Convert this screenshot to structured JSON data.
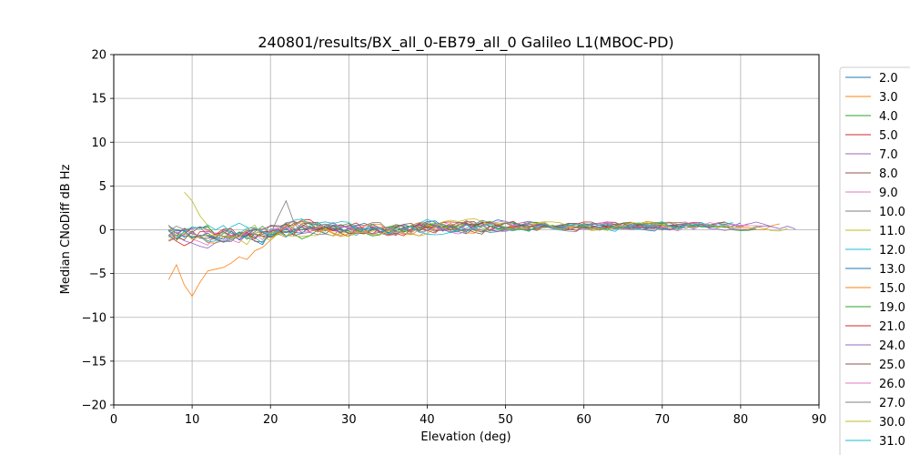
{
  "chart_data": {
    "type": "line",
    "title": "240801/results/BX_all_0-EB79_all_0 Galileo L1(MBOC-PD)",
    "xlabel": "Elevation (deg)",
    "ylabel": "Median CNoDiff dB Hz",
    "xlim": [
      0,
      90
    ],
    "ylim": [
      -20,
      20
    ],
    "xticks": [
      0,
      10,
      20,
      30,
      40,
      50,
      60,
      70,
      80,
      90
    ],
    "yticks": [
      -20,
      -15,
      -10,
      -5,
      0,
      5,
      10,
      15,
      20
    ],
    "grid": true,
    "legend_position": "right, outside plot, clipped at bottom",
    "legend_visible_count": 20,
    "x_start": 7,
    "x_end": 87,
    "series": [
      {
        "name": "2.0",
        "color": "#1f77b4",
        "x_start": 7,
        "x_end": 80
      },
      {
        "name": "3.0",
        "color": "#ff7f0e",
        "x_start": 7,
        "x_end": 85
      },
      {
        "name": "4.0",
        "color": "#2ca02c",
        "x_start": 7,
        "x_end": 82
      },
      {
        "name": "5.0",
        "color": "#d62728",
        "x_start": 7,
        "x_end": 75
      },
      {
        "name": "7.0",
        "color": "#9467bd",
        "x_start": 7,
        "x_end": 87
      },
      {
        "name": "8.0",
        "color": "#8c564b",
        "x_start": 7,
        "x_end": 78
      },
      {
        "name": "9.0",
        "color": "#e377c2",
        "x_start": 8,
        "x_end": 83
      },
      {
        "name": "10.0",
        "color": "#7f7f7f",
        "x_start": 7,
        "x_end": 70
      },
      {
        "name": "11.0",
        "color": "#bcbd22",
        "x_start": 9,
        "x_end": 86
      },
      {
        "name": "12.0",
        "color": "#17becf",
        "x_start": 7,
        "x_end": 76
      },
      {
        "name": "13.0",
        "color": "#1f77b4",
        "x_start": 7,
        "x_end": 72
      },
      {
        "name": "15.0",
        "color": "#ff7f0e",
        "x_start": 7,
        "x_end": 74
      },
      {
        "name": "19.0",
        "color": "#2ca02c",
        "x_start": 8,
        "x_end": 79
      },
      {
        "name": "21.0",
        "color": "#d62728",
        "x_start": 7,
        "x_end": 68
      },
      {
        "name": "24.0",
        "color": "#9467bd",
        "x_start": 7,
        "x_end": 84
      },
      {
        "name": "25.0",
        "color": "#8c564b",
        "x_start": 7,
        "x_end": 73
      },
      {
        "name": "26.0",
        "color": "#e377c2",
        "x_start": 7,
        "x_end": 81
      },
      {
        "name": "27.0",
        "color": "#7f7f7f",
        "x_start": 7,
        "x_end": 77
      },
      {
        "name": "30.0",
        "color": "#bcbd22",
        "x_start": 7,
        "x_end": 71
      },
      {
        "name": "31.0",
        "color": "#17becf",
        "x_start": 7,
        "x_end": 79
      }
    ],
    "highlight_series": [
      {
        "name": "15.0",
        "points": [
          [
            7,
            -5.7
          ],
          [
            8,
            -4.0
          ],
          [
            9,
            -6.3
          ],
          [
            10,
            -7.6
          ],
          [
            11,
            -6.0
          ],
          [
            12,
            -4.7
          ],
          [
            13,
            -4.5
          ],
          [
            14,
            -4.3
          ],
          [
            15,
            -3.8
          ],
          [
            16,
            -3.1
          ],
          [
            17,
            -3.4
          ],
          [
            18,
            -2.4
          ],
          [
            19,
            -2.0
          ],
          [
            20,
            -1.2
          ],
          [
            21,
            -0.3
          ],
          [
            22,
            0.5
          ],
          [
            23,
            1.0
          ],
          [
            24,
            0.6
          ],
          [
            25,
            0.2
          ]
        ]
      },
      {
        "name": "11.0",
        "points": [
          [
            9,
            4.3
          ],
          [
            10,
            3.3
          ],
          [
            11,
            1.6
          ],
          [
            12,
            0.5
          ]
        ]
      },
      {
        "name": "10.0",
        "points": [
          [
            20,
            -0.5
          ],
          [
            21,
            1.5
          ],
          [
            22,
            3.3
          ],
          [
            23,
            0.8
          ],
          [
            24,
            -0.4
          ]
        ]
      }
    ]
  }
}
